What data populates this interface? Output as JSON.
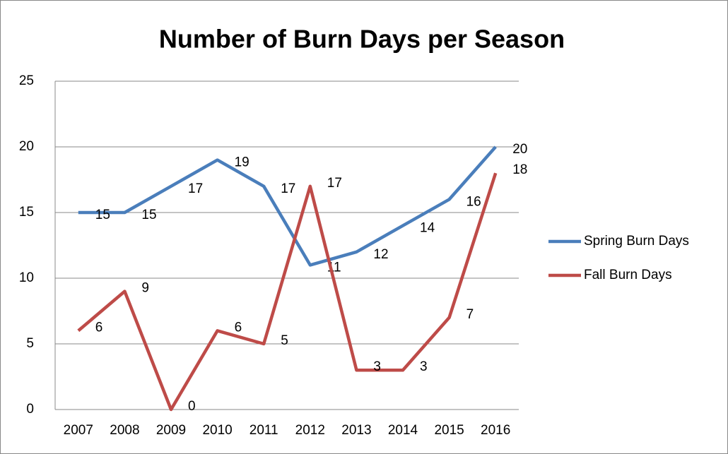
{
  "chart_data": {
    "type": "line",
    "title": "Number of Burn Days per Season",
    "categories": [
      "2007",
      "2008",
      "2009",
      "2010",
      "2011",
      "2012",
      "2013",
      "2014",
      "2015",
      "2016"
    ],
    "series": [
      {
        "name": "Spring Burn Days",
        "color": "#4a7ebb",
        "values": [
          15,
          15,
          17,
          19,
          17,
          11,
          12,
          14,
          16,
          20
        ]
      },
      {
        "name": "Fall Burn Days",
        "color": "#be4b48",
        "values": [
          6,
          9,
          0,
          6,
          5,
          17,
          3,
          3,
          7,
          18
        ]
      }
    ],
    "ylim": [
      0,
      25
    ],
    "yticks": [
      0,
      5,
      10,
      15,
      20,
      25
    ],
    "grid": true,
    "legend": "right"
  }
}
